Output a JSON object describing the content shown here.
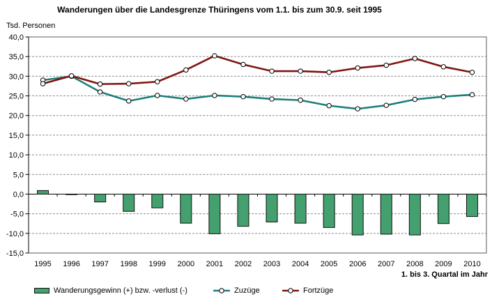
{
  "chart_data": {
    "type": "combo",
    "title": "Wanderungen über die Landesgrenze Thüringens vom 1.1. bis zum 30.9. seit 1995",
    "ylabel": "Tsd. Personen",
    "xlabel": "",
    "x_note": "1. bis 3. Quartal im Jahr",
    "categories": [
      "1995",
      "1996",
      "1997",
      "1998",
      "1999",
      "2000",
      "2001",
      "2002",
      "2003",
      "2004",
      "2005",
      "2006",
      "2007",
      "2008",
      "2009",
      "2010"
    ],
    "ylim": [
      -15,
      40
    ],
    "ytick_step": 5,
    "ytick_labels": [
      "40,0",
      "35,0",
      "30,0",
      "25,0",
      "20,0",
      "15,0",
      "10,0",
      "5,0",
      "0,0",
      "-5,0",
      "-10,0",
      "-15,0"
    ],
    "grid": "horizontal dashed",
    "legend_position": "bottom",
    "series": [
      {
        "name": "Wanderungsgewinn (+) bzw. -verlust (-)",
        "type": "bar",
        "color": "#44A06E",
        "values": [
          0.9,
          -0.1,
          -2.0,
          -4.4,
          -3.5,
          -7.4,
          -10.1,
          -8.2,
          -7.1,
          -7.4,
          -8.5,
          -10.4,
          -10.2,
          -10.4,
          -7.5,
          -5.7
        ]
      },
      {
        "name": "Zuzüge",
        "type": "line",
        "color": "#1C7F7A",
        "values": [
          29.0,
          30.0,
          26.0,
          23.7,
          25.1,
          24.2,
          25.1,
          24.8,
          24.2,
          23.9,
          22.5,
          21.7,
          22.6,
          24.1,
          24.8,
          25.3
        ]
      },
      {
        "name": "Fortzüge",
        "type": "line",
        "color": "#7F1512",
        "values": [
          28.1,
          30.1,
          28.0,
          28.1,
          28.6,
          31.6,
          35.2,
          33.0,
          31.3,
          31.3,
          31.0,
          32.1,
          32.8,
          34.5,
          32.4,
          31.0
        ]
      }
    ],
    "colors": {
      "bar_fill": "#44A06E",
      "bar_border": "#111111",
      "zuzuege_line": "#1C7F7A",
      "fortzuege_line": "#7F1512",
      "marker_fill": "#FFFFFF",
      "marker_border": "#000000",
      "gridline": "#8C8C8C",
      "frame": "#595959",
      "axis": "#000000",
      "background": "#FFFFFF"
    }
  }
}
